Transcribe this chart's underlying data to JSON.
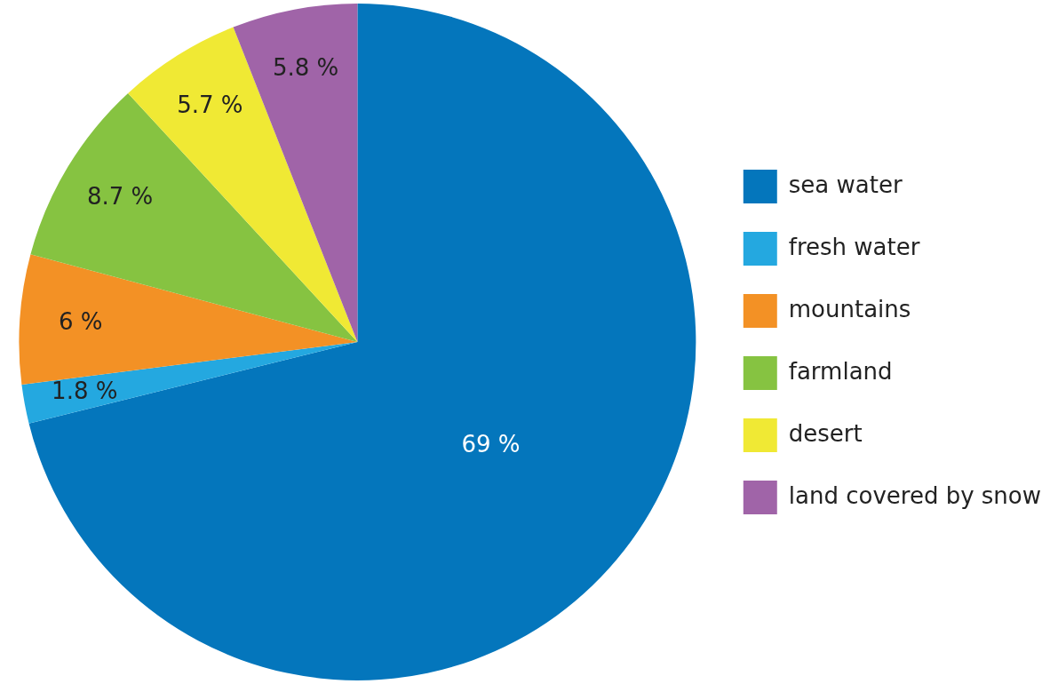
{
  "chart_data": {
    "type": "pie",
    "categories": [
      "sea water",
      "fresh water",
      "mountains",
      "farmland",
      "desert",
      "land covered by snow"
    ],
    "values": [
      69,
      1.8,
      6,
      8.7,
      5.7,
      5.8
    ],
    "colors": [
      "#0476bc",
      "#24a8e0",
      "#f39125",
      "#86c341",
      "#f0e934",
      "#a064a8"
    ],
    "value_labels": [
      "69 %",
      "1.8 %",
      "6 %",
      "8.7 %",
      "5.7 %",
      "5.8 %"
    ],
    "legend": "right"
  }
}
